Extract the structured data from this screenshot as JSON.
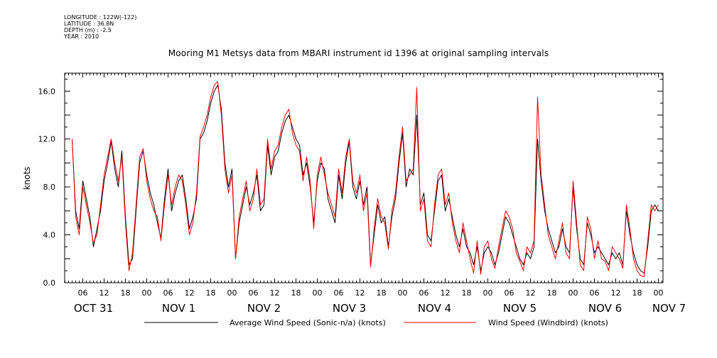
{
  "meta": {
    "longitude": "LONGITUDE : 122W(-122)",
    "latitude": "LATITUDE : 36.8N",
    "depth": "DEPTH (m) : -2.5",
    "year": "YEAR : 2010"
  },
  "chart_data": {
    "type": "line",
    "title": "Mooring M1 Metsys data from MBARI instrument id 1396 at original sampling intervals",
    "ylabel": "knots",
    "xlabel": "",
    "x_unit": "hours since 2010-10-31 03:00",
    "xlim": [
      0,
      165
    ],
    "ylim": [
      0,
      17.5
    ],
    "yticks": [
      0.0,
      4.0,
      8.0,
      12.0,
      16.0
    ],
    "ytick_labels": [
      "0.0",
      "4.0",
      "8.0",
      "12.0",
      "16.0"
    ],
    "hour_ticks": [
      {
        "t": 3,
        "label": "06"
      },
      {
        "t": 9,
        "label": "12"
      },
      {
        "t": 15,
        "label": "18"
      },
      {
        "t": 21,
        "label": "00"
      },
      {
        "t": 27,
        "label": "06"
      },
      {
        "t": 33,
        "label": "12"
      },
      {
        "t": 39,
        "label": "18"
      },
      {
        "t": 45,
        "label": "00"
      },
      {
        "t": 51,
        "label": "06"
      },
      {
        "t": 57,
        "label": "12"
      },
      {
        "t": 63,
        "label": "18"
      },
      {
        "t": 69,
        "label": "00"
      },
      {
        "t": 75,
        "label": "06"
      },
      {
        "t": 81,
        "label": "12"
      },
      {
        "t": 87,
        "label": "18"
      },
      {
        "t": 93,
        "label": "00"
      },
      {
        "t": 99,
        "label": "06"
      },
      {
        "t": 105,
        "label": "12"
      },
      {
        "t": 111,
        "label": "18"
      },
      {
        "t": 117,
        "label": "00"
      },
      {
        "t": 123,
        "label": "06"
      },
      {
        "t": 129,
        "label": "12"
      },
      {
        "t": 135,
        "label": "18"
      },
      {
        "t": 141,
        "label": "00"
      },
      {
        "t": 147,
        "label": "06"
      },
      {
        "t": 153,
        "label": "12"
      },
      {
        "t": 159,
        "label": "18"
      },
      {
        "t": 165,
        "label": "00"
      }
    ],
    "day_labels": [
      {
        "t": 6,
        "label": "OCT 31"
      },
      {
        "t": 30,
        "label": "NOV  1"
      },
      {
        "t": 54,
        "label": "NOV  2"
      },
      {
        "t": 78,
        "label": "NOV  3"
      },
      {
        "t": 102,
        "label": "NOV  4"
      },
      {
        "t": 126,
        "label": "NOV  5"
      },
      {
        "t": 150,
        "label": "NOV  6"
      },
      {
        "t": 168,
        "label": "NOV  7"
      }
    ],
    "series": [
      {
        "name": "Average Wind Speed (Sonic-n/a) (knots)",
        "color": "#000000",
        "x": [
          0,
          1,
          2,
          3,
          4,
          5,
          6,
          7,
          8,
          9,
          10,
          11,
          12,
          13,
          14,
          15,
          16,
          17,
          18,
          19,
          20,
          21,
          22,
          23,
          24,
          25,
          26,
          27,
          28,
          29,
          30,
          31,
          32,
          33,
          34,
          35,
          36,
          37,
          38,
          39,
          40,
          41,
          42,
          43,
          44,
          45,
          46,
          47,
          48,
          49,
          50,
          51,
          52,
          53,
          54,
          55,
          56,
          57,
          58,
          59,
          60,
          61,
          62,
          63,
          64,
          65,
          66,
          67,
          68,
          69,
          70,
          71,
          72,
          73,
          74,
          75,
          76,
          77,
          78,
          79,
          80,
          81,
          82,
          83,
          84,
          85,
          86,
          87,
          88,
          89,
          90,
          91,
          92,
          93,
          94,
          95,
          96,
          97,
          98,
          99,
          100,
          101,
          102,
          103,
          104,
          105,
          106,
          107,
          108,
          109,
          110,
          111,
          112,
          113,
          114,
          115,
          116,
          117,
          118,
          119,
          120,
          121,
          122,
          123,
          124,
          125,
          126,
          127,
          128,
          129,
          130,
          131,
          132,
          133,
          134,
          135,
          136,
          137,
          138,
          139,
          140,
          141,
          142,
          143,
          144,
          145,
          146,
          147,
          148,
          149,
          150,
          151,
          152,
          153,
          154,
          155,
          156,
          157,
          158,
          159,
          160,
          161,
          162,
          163,
          164,
          165
        ],
        "y": [
          12.0,
          6.0,
          4.5,
          8.5,
          7.0,
          5.5,
          3.0,
          4.5,
          6.0,
          8.5,
          10.0,
          11.8,
          9.5,
          8.0,
          11.0,
          5.5,
          1.5,
          2.0,
          6.0,
          10.0,
          11.0,
          9.0,
          7.5,
          6.5,
          5.0,
          3.7,
          7.0,
          9.5,
          6.0,
          7.5,
          8.5,
          9.0,
          7.0,
          4.5,
          5.5,
          7.0,
          12.0,
          12.5,
          13.5,
          15.0,
          16.0,
          16.5,
          14.5,
          10.0,
          8.0,
          9.5,
          2.0,
          5.0,
          6.5,
          8.0,
          6.5,
          7.5,
          9.0,
          6.0,
          6.5,
          11.5,
          9.0,
          10.5,
          11.0,
          12.5,
          13.5,
          14.0,
          13.0,
          12.0,
          11.5,
          9.0,
          10.0,
          8.0,
          5.0,
          8.5,
          10.0,
          9.5,
          7.0,
          6.0,
          5.0,
          9.0,
          7.0,
          10.0,
          11.8,
          8.0,
          7.0,
          8.5,
          6.5,
          8.0,
          1.5,
          4.0,
          6.5,
          5.0,
          5.5,
          3.0,
          5.5,
          7.0,
          10.0,
          12.5,
          8.0,
          9.5,
          9.0,
          14.0,
          6.5,
          7.5,
          4.0,
          3.5,
          6.0,
          8.5,
          9.0,
          6.0,
          7.0,
          5.5,
          4.0,
          3.0,
          4.5,
          3.0,
          2.5,
          1.5,
          3.0,
          1.0,
          2.5,
          3.0,
          2.5,
          1.5,
          2.5,
          4.0,
          5.5,
          5.0,
          4.0,
          3.0,
          2.0,
          1.5,
          2.5,
          2.0,
          3.0,
          12.0,
          8.5,
          6.0,
          4.5,
          3.5,
          2.5,
          3.0,
          4.5,
          3.0,
          2.5,
          8.0,
          4.5,
          2.0,
          1.5,
          5.0,
          4.0,
          2.5,
          3.0,
          2.5,
          2.0,
          1.5,
          2.5,
          2.0,
          2.5,
          1.5,
          6.0,
          4.0,
          2.5,
          1.5,
          1.0,
          0.8,
          3.0,
          6.0,
          6.5,
          6.0
        ]
      },
      {
        "name": "Wind Speed (Windbird) (knots)",
        "color": "#ff0000",
        "x": [
          0,
          1,
          2,
          3,
          4,
          5,
          6,
          7,
          8,
          9,
          10,
          11,
          12,
          13,
          14,
          15,
          16,
          17,
          18,
          19,
          20,
          21,
          22,
          23,
          24,
          25,
          26,
          27,
          28,
          29,
          30,
          31,
          32,
          33,
          34,
          35,
          36,
          37,
          38,
          39,
          40,
          41,
          42,
          43,
          44,
          45,
          46,
          47,
          48,
          49,
          50,
          51,
          52,
          53,
          54,
          55,
          56,
          57,
          58,
          59,
          60,
          61,
          62,
          63,
          64,
          65,
          66,
          67,
          68,
          69,
          70,
          71,
          72,
          73,
          74,
          75,
          76,
          77,
          78,
          79,
          80,
          81,
          82,
          83,
          84,
          85,
          86,
          87,
          88,
          89,
          90,
          91,
          92,
          93,
          94,
          95,
          96,
          97,
          98,
          99,
          100,
          101,
          102,
          103,
          104,
          105,
          106,
          107,
          108,
          109,
          110,
          111,
          112,
          113,
          114,
          115,
          116,
          117,
          118,
          119,
          120,
          121,
          122,
          123,
          124,
          125,
          126,
          127,
          128,
          129,
          130,
          131,
          132,
          133,
          134,
          135,
          136,
          137,
          138,
          139,
          140,
          141,
          142,
          143,
          144,
          145,
          146,
          147,
          148,
          149,
          150,
          151,
          152,
          153,
          154,
          155,
          156,
          157,
          158,
          159,
          160,
          161,
          162,
          163,
          164,
          165
        ],
        "y": [
          12.0,
          5.5,
          4.0,
          8.0,
          6.5,
          5.0,
          3.3,
          4.0,
          6.5,
          9.0,
          10.5,
          12.0,
          10.0,
          8.5,
          10.5,
          5.0,
          1.0,
          2.5,
          6.5,
          10.5,
          11.2,
          8.5,
          7.0,
          6.0,
          5.5,
          3.5,
          6.5,
          9.0,
          6.5,
          8.0,
          9.0,
          8.5,
          6.5,
          4.0,
          5.0,
          7.5,
          12.2,
          13.0,
          14.0,
          15.5,
          16.5,
          16.8,
          14.0,
          9.5,
          7.5,
          9.0,
          2.0,
          5.5,
          7.0,
          8.5,
          6.0,
          7.0,
          9.5,
          6.5,
          7.0,
          12.0,
          9.5,
          11.0,
          11.5,
          13.0,
          14.0,
          14.5,
          12.5,
          11.5,
          11.0,
          8.5,
          10.5,
          8.5,
          4.5,
          9.0,
          10.5,
          9.0,
          7.5,
          6.5,
          5.5,
          9.5,
          7.5,
          10.5,
          12.0,
          8.5,
          7.5,
          9.0,
          6.0,
          7.5,
          1.3,
          4.5,
          7.0,
          5.5,
          5.0,
          2.8,
          6.0,
          7.5,
          10.5,
          13.0,
          8.5,
          9.0,
          9.5,
          16.3,
          6.0,
          7.0,
          3.5,
          3.0,
          6.5,
          9.0,
          9.5,
          6.5,
          7.5,
          5.0,
          3.5,
          2.5,
          5.0,
          3.5,
          2.0,
          0.8,
          3.5,
          0.7,
          3.0,
          3.5,
          2.0,
          1.2,
          3.0,
          4.5,
          6.0,
          5.5,
          4.5,
          2.5,
          1.8,
          1.0,
          3.0,
          2.5,
          3.5,
          15.5,
          9.0,
          6.5,
          4.0,
          3.0,
          2.0,
          3.5,
          5.0,
          2.5,
          2.0,
          8.5,
          5.0,
          1.5,
          1.0,
          5.5,
          4.5,
          2.0,
          3.5,
          2.0,
          1.8,
          1.0,
          3.0,
          2.5,
          2.0,
          1.2,
          6.5,
          4.5,
          2.0,
          1.0,
          0.6,
          0.5,
          3.5,
          6.5,
          6.0,
          6.5
        ]
      }
    ],
    "grid": false,
    "legend": "bottom"
  }
}
